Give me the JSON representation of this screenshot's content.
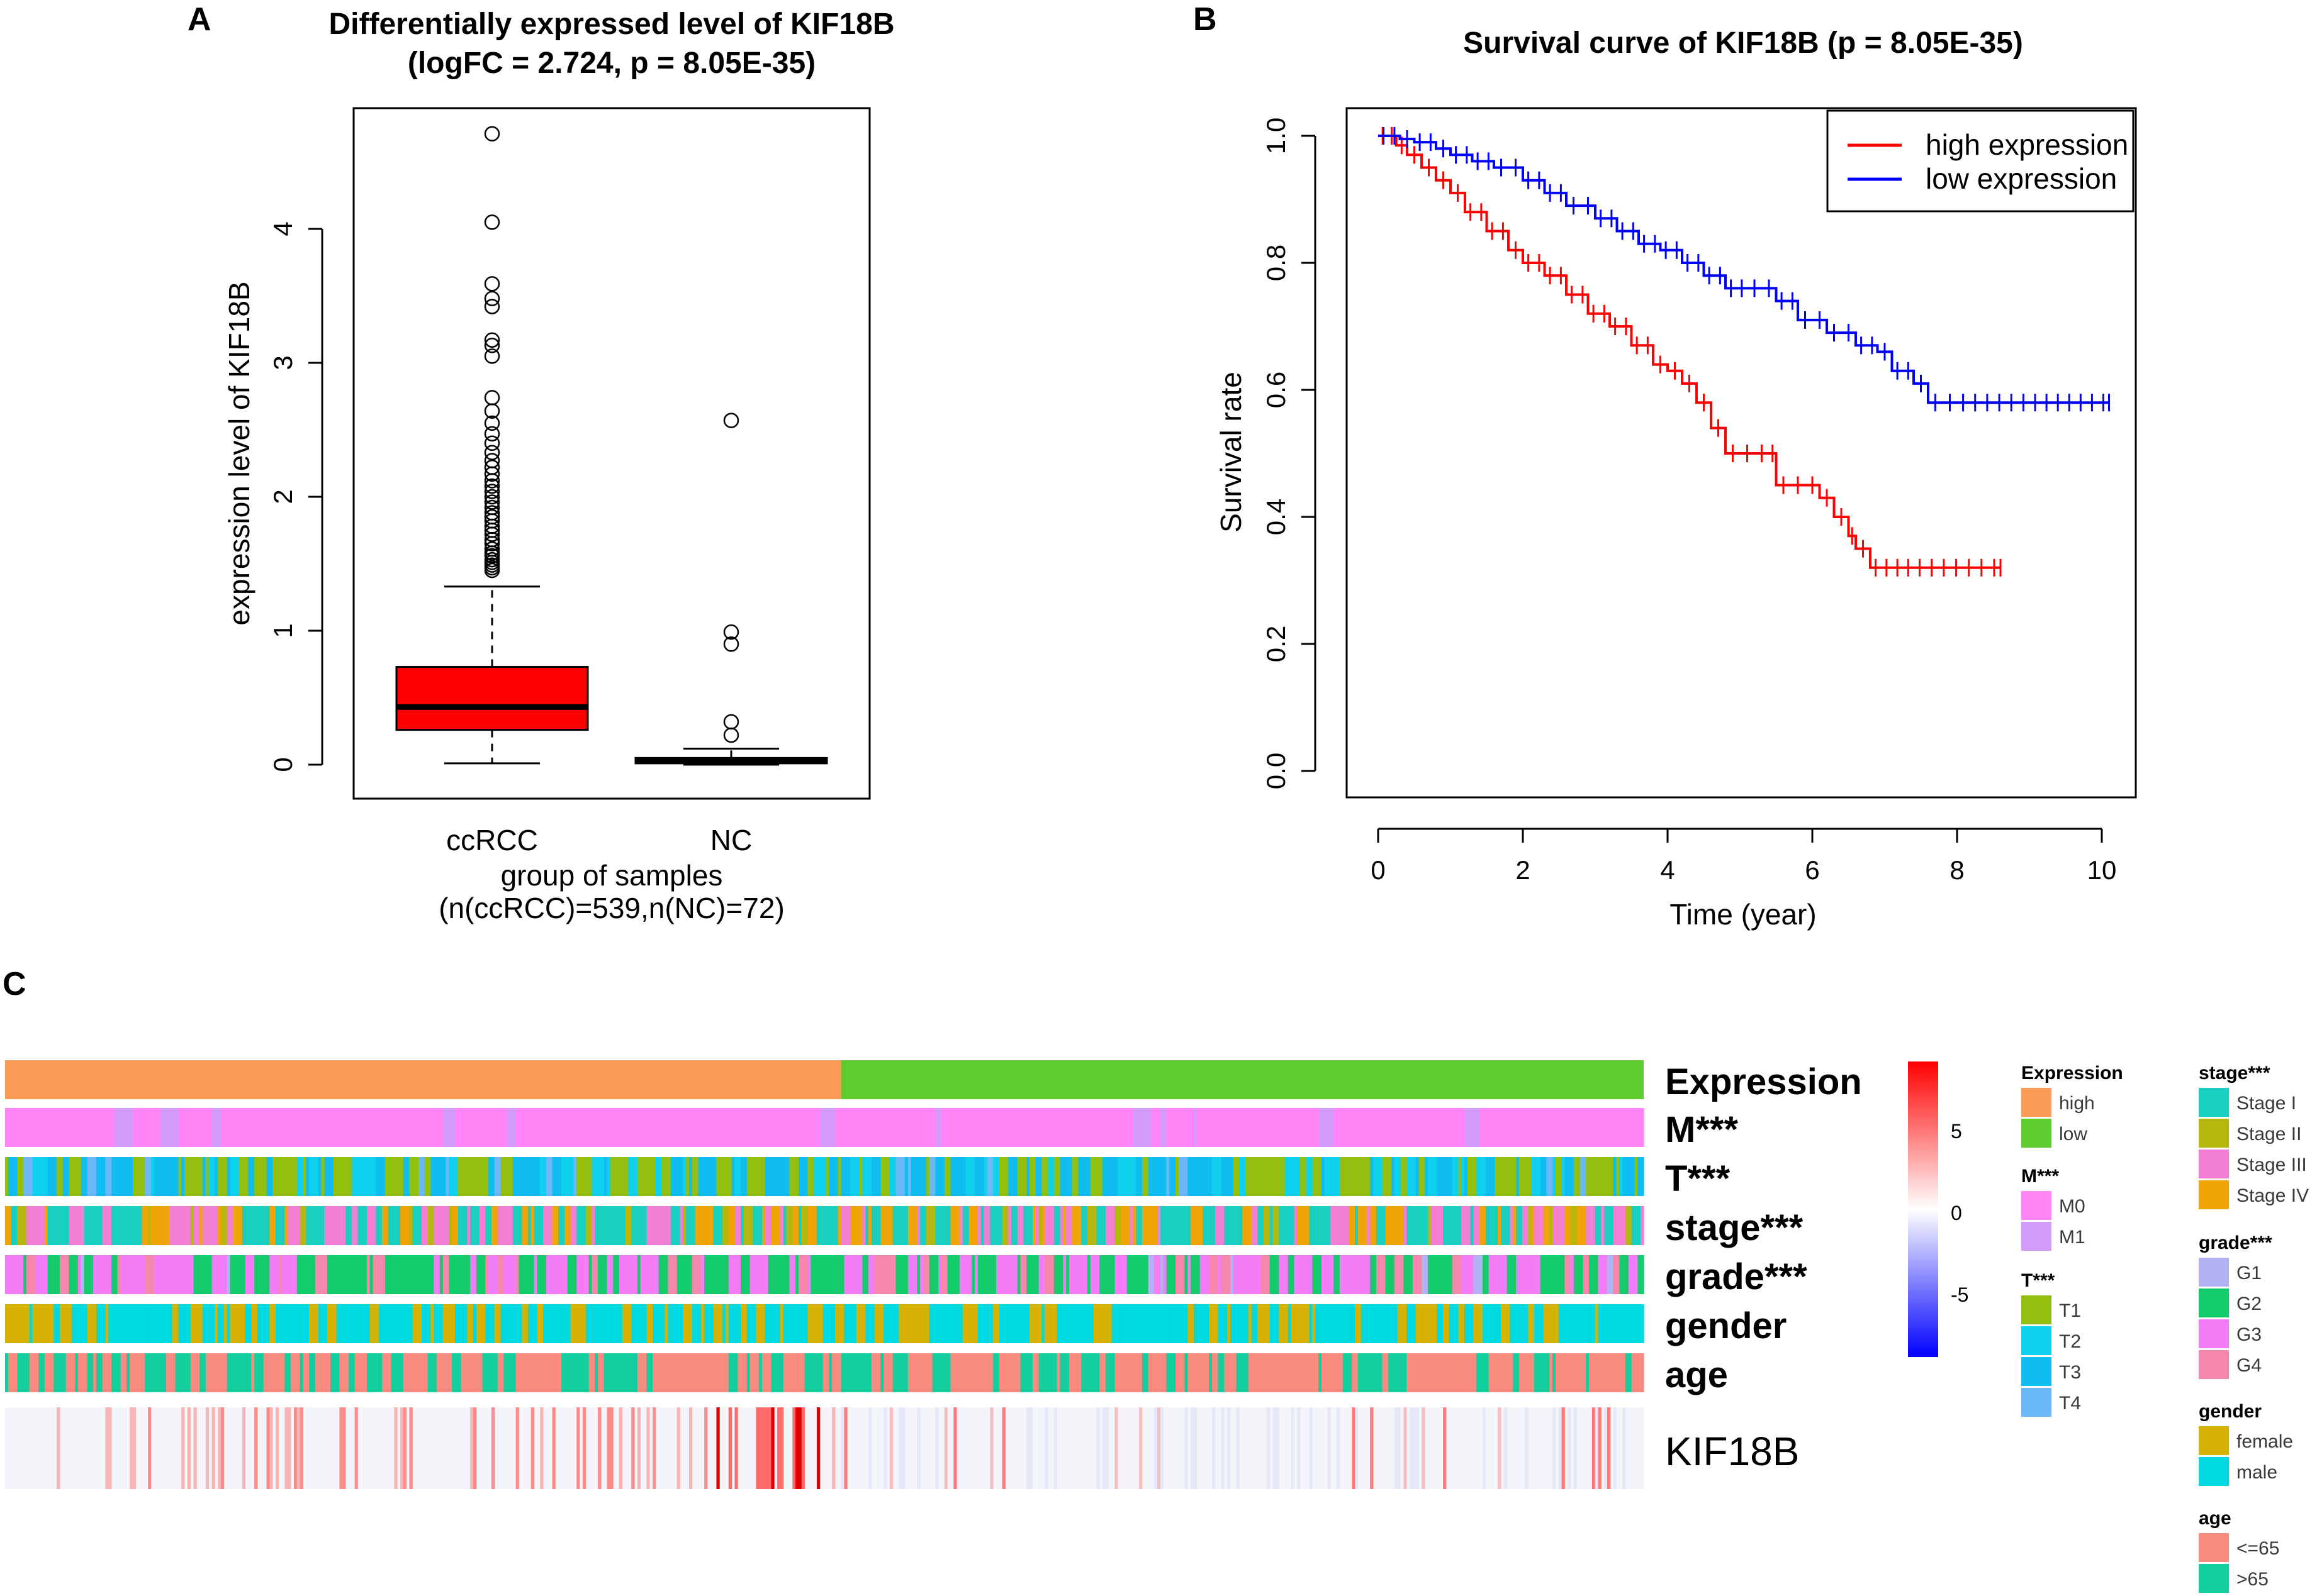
{
  "colors": {
    "box_fill": "#ff0000",
    "high": "#ff0000",
    "low": "#0000ff",
    "heat_high": "#ff0000",
    "heat_mid": "#ffffff",
    "heat_low": "#0000ff"
  },
  "panels": {
    "a": "A",
    "b": "B",
    "c": "C"
  },
  "chart_data": [
    {
      "type": "box",
      "panel": "A",
      "title_line1": "Differentially expressed level of KIF18B",
      "title_line2": "(logFC = 2.724, p = 8.05E-35)",
      "ylabel": "expression level of KIF18B",
      "xlabel": "group of samples",
      "xlabel_sub": "(n(ccRCC)=539,n(NC)=72)",
      "ylim": [
        -0.15,
        4.85
      ],
      "yticks": [
        "0",
        "1",
        "2",
        "3",
        "4"
      ],
      "groups": [
        {
          "name": "ccRCC",
          "whisker_low": 0.01,
          "q1": 0.26,
          "median": 0.43,
          "q3": 0.73,
          "whisker_high": 1.33,
          "outliers": [
            1.45,
            1.47,
            1.49,
            1.51,
            1.53,
            1.56,
            1.58,
            1.61,
            1.65,
            1.68,
            1.72,
            1.75,
            1.78,
            1.82,
            1.85,
            1.88,
            1.92,
            1.96,
            2.0,
            2.04,
            2.08,
            2.12,
            2.17,
            2.22,
            2.27,
            2.33,
            2.4,
            2.47,
            2.55,
            2.64,
            2.74,
            3.05,
            3.13,
            3.17,
            3.42,
            3.48,
            3.59,
            4.05,
            4.71
          ]
        },
        {
          "name": "NC",
          "whisker_low": 0.0,
          "q1": 0.01,
          "median": 0.03,
          "q3": 0.05,
          "whisker_high": 0.12,
          "outliers": [
            0.22,
            0.32,
            0.9,
            0.99,
            2.57
          ]
        }
      ]
    },
    {
      "type": "line",
      "panel": "B",
      "title": "Survival curve of KIF18B (p = 8.05E-35)",
      "xlabel": "Time (year)",
      "ylabel": "Survival rate",
      "xlim": [
        0,
        10.3
      ],
      "ylim": [
        -0.02,
        1.04
      ],
      "xticks": [
        "0",
        "2",
        "4",
        "6",
        "8",
        "10"
      ],
      "yticks": [
        "0.0",
        "0.2",
        "0.4",
        "0.6",
        "0.8",
        "1.0"
      ],
      "legend": [
        "high expression",
        "low expression"
      ],
      "series": [
        {
          "name": "high expression",
          "color": "#ff0000",
          "x": [
            0,
            0.25,
            0.4,
            0.6,
            0.8,
            1.0,
            1.2,
            1.5,
            1.8,
            2.0,
            2.3,
            2.6,
            2.9,
            3.2,
            3.5,
            3.8,
            4.0,
            4.2,
            4.4,
            4.6,
            4.8,
            5.0,
            5.4,
            5.5,
            5.9,
            6.1,
            6.3,
            6.5,
            6.6,
            6.8,
            7.4,
            7.9,
            8.6
          ],
          "y": [
            1.0,
            0.985,
            0.97,
            0.95,
            0.93,
            0.91,
            0.88,
            0.85,
            0.82,
            0.8,
            0.78,
            0.75,
            0.72,
            0.7,
            0.67,
            0.64,
            0.63,
            0.61,
            0.58,
            0.54,
            0.5,
            0.5,
            0.5,
            0.45,
            0.45,
            0.43,
            0.4,
            0.37,
            0.35,
            0.32,
            0.32,
            0.32,
            0.32
          ]
        },
        {
          "name": "low expression",
          "color": "#0000ff",
          "x": [
            0,
            0.3,
            0.5,
            0.8,
            1.0,
            1.3,
            1.6,
            2.0,
            2.3,
            2.6,
            3.0,
            3.3,
            3.6,
            3.9,
            4.2,
            4.5,
            4.8,
            5.1,
            5.5,
            5.8,
            6.2,
            6.6,
            6.9,
            7.1,
            7.4,
            7.6,
            8.0,
            9.0,
            10.1
          ],
          "y": [
            1.0,
            0.995,
            0.99,
            0.98,
            0.97,
            0.96,
            0.95,
            0.93,
            0.91,
            0.89,
            0.87,
            0.85,
            0.83,
            0.82,
            0.8,
            0.78,
            0.76,
            0.76,
            0.74,
            0.71,
            0.69,
            0.67,
            0.66,
            0.63,
            0.61,
            0.58,
            0.58,
            0.58,
            0.58
          ]
        }
      ]
    },
    {
      "type": "heatmap",
      "panel": "C",
      "rows": [
        "Expression",
        "M***",
        "T***",
        "stage***",
        "grade***",
        "gender",
        "age"
      ],
      "gene_row": "KIF18B",
      "scale_ticks": [
        "5",
        "0",
        "-5"
      ],
      "legend_groups": [
        {
          "title": "Expression",
          "items": [
            {
              "label": "high",
              "color": "#f99b56"
            },
            {
              "label": "low",
              "color": "#5fcc2d"
            }
          ]
        },
        {
          "title": "M***",
          "items": [
            {
              "label": "M0",
              "color": "#ff84f6"
            },
            {
              "label": "M1",
              "color": "#d39af7"
            }
          ]
        },
        {
          "title": "T***",
          "items": [
            {
              "label": "T1",
              "color": "#93bf0f"
            },
            {
              "label": "T2",
              "color": "#0fd1ee"
            },
            {
              "label": "T3",
              "color": "#10bdf0"
            },
            {
              "label": "T4",
              "color": "#6ab8f8"
            }
          ]
        },
        {
          "title": "stage***",
          "items": [
            {
              "label": "Stage I",
              "color": "#18cfc0"
            },
            {
              "label": "Stage II",
              "color": "#b6b70e"
            },
            {
              "label": "Stage III",
              "color": "#f27fd3"
            },
            {
              "label": "Stage IV",
              "color": "#f0a405"
            }
          ]
        },
        {
          "title": "grade***",
          "items": [
            {
              "label": "G1",
              "color": "#b2b2f4"
            },
            {
              "label": "G2",
              "color": "#14cc6b"
            },
            {
              "label": "G3",
              "color": "#f27df7"
            },
            {
              "label": "G4",
              "color": "#f587ad"
            }
          ]
        },
        {
          "title": "gender",
          "items": [
            {
              "label": "female",
              "color": "#d6b205"
            },
            {
              "label": "male",
              "color": "#00d9e1"
            }
          ]
        },
        {
          "title": "age",
          "items": [
            {
              "label": "<=65",
              "color": "#f98a80"
            },
            {
              "label": ">65",
              "color": "#13cf9e"
            }
          ]
        }
      ]
    }
  ]
}
